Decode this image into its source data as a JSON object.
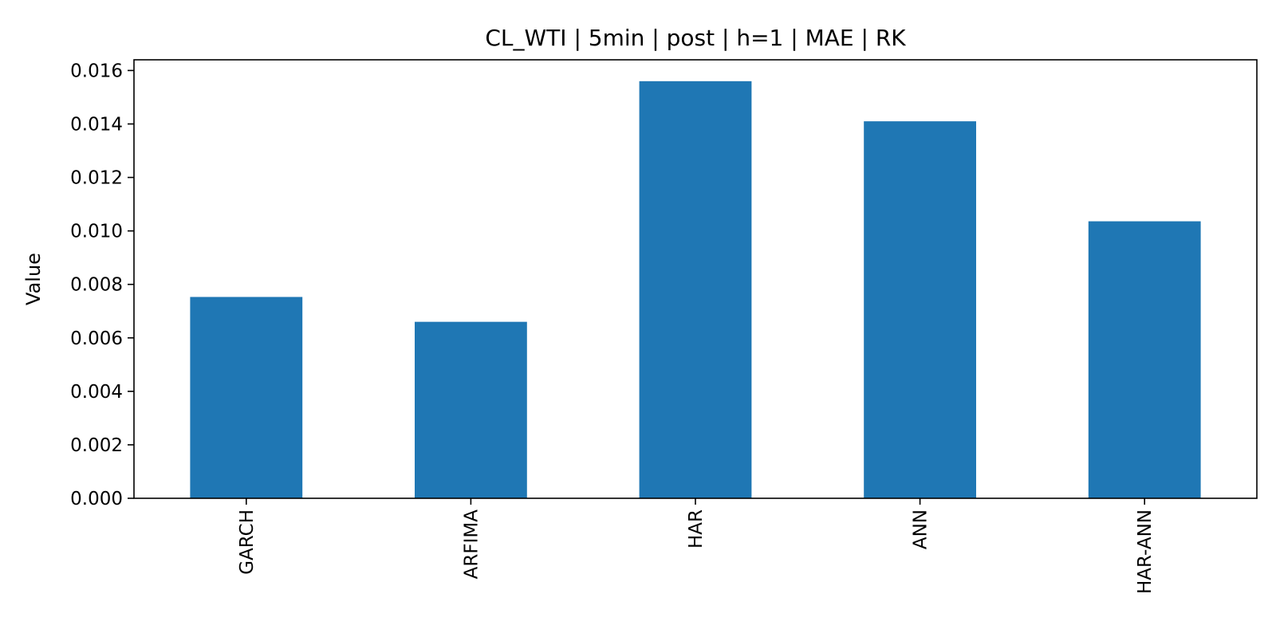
{
  "chart_data": {
    "type": "bar",
    "title": "CL_WTI | 5min | post | h=1 | MAE | RK",
    "xlabel": "",
    "ylabel": "Value",
    "categories": [
      "GARCH",
      "ARFIMA",
      "HAR",
      "ANN",
      "HAR-ANN"
    ],
    "values": [
      0.00753,
      0.0066,
      0.0156,
      0.0141,
      0.01036
    ],
    "ylim": [
      0,
      0.0164
    ],
    "yticks": [
      "0.000",
      "0.002",
      "0.004",
      "0.006",
      "0.008",
      "0.010",
      "0.012",
      "0.014",
      "0.016"
    ],
    "ytick_values": [
      0,
      0.002,
      0.004,
      0.006,
      0.008,
      0.01,
      0.012,
      0.014,
      0.016
    ],
    "bar_color": "#1f77b4",
    "grid": false,
    "legend": "none",
    "xtick_rotation": "vertical"
  }
}
